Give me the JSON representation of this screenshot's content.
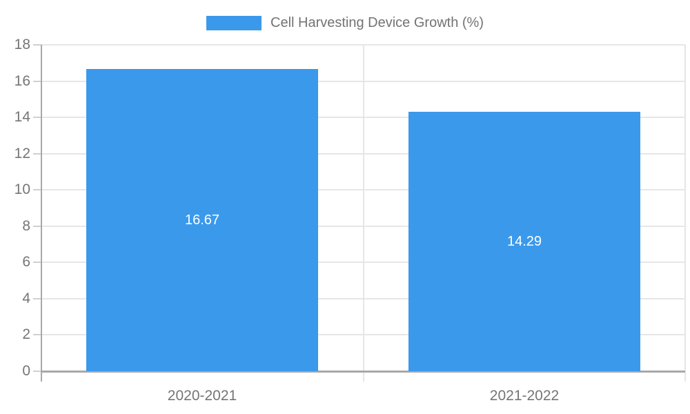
{
  "legend": {
    "label": "Cell Harvesting Device Growth (%)",
    "swatch_color": "#3B99EC"
  },
  "chart_data": {
    "type": "bar",
    "title": "Cell Harvesting Device Growth (%)",
    "categories": [
      "2020-2021",
      "2021-2022"
    ],
    "values": [
      16.67,
      14.29
    ],
    "data_labels": [
      "16.67",
      "14.29"
    ],
    "xlabel": "",
    "ylabel": "",
    "ylim": [
      0,
      18
    ],
    "ytick_step": 2,
    "ytick_labels": [
      "0",
      "2",
      "4",
      "6",
      "8",
      "10",
      "12",
      "14",
      "16",
      "18"
    ],
    "grid": true,
    "legend_position": "top",
    "bar_color": "#3B99EC",
    "data_label_color": "#ffffff",
    "gridline_color": "#e6e6e6",
    "axis_color": "#a8a8a8",
    "tick_label_color": "#757575"
  }
}
